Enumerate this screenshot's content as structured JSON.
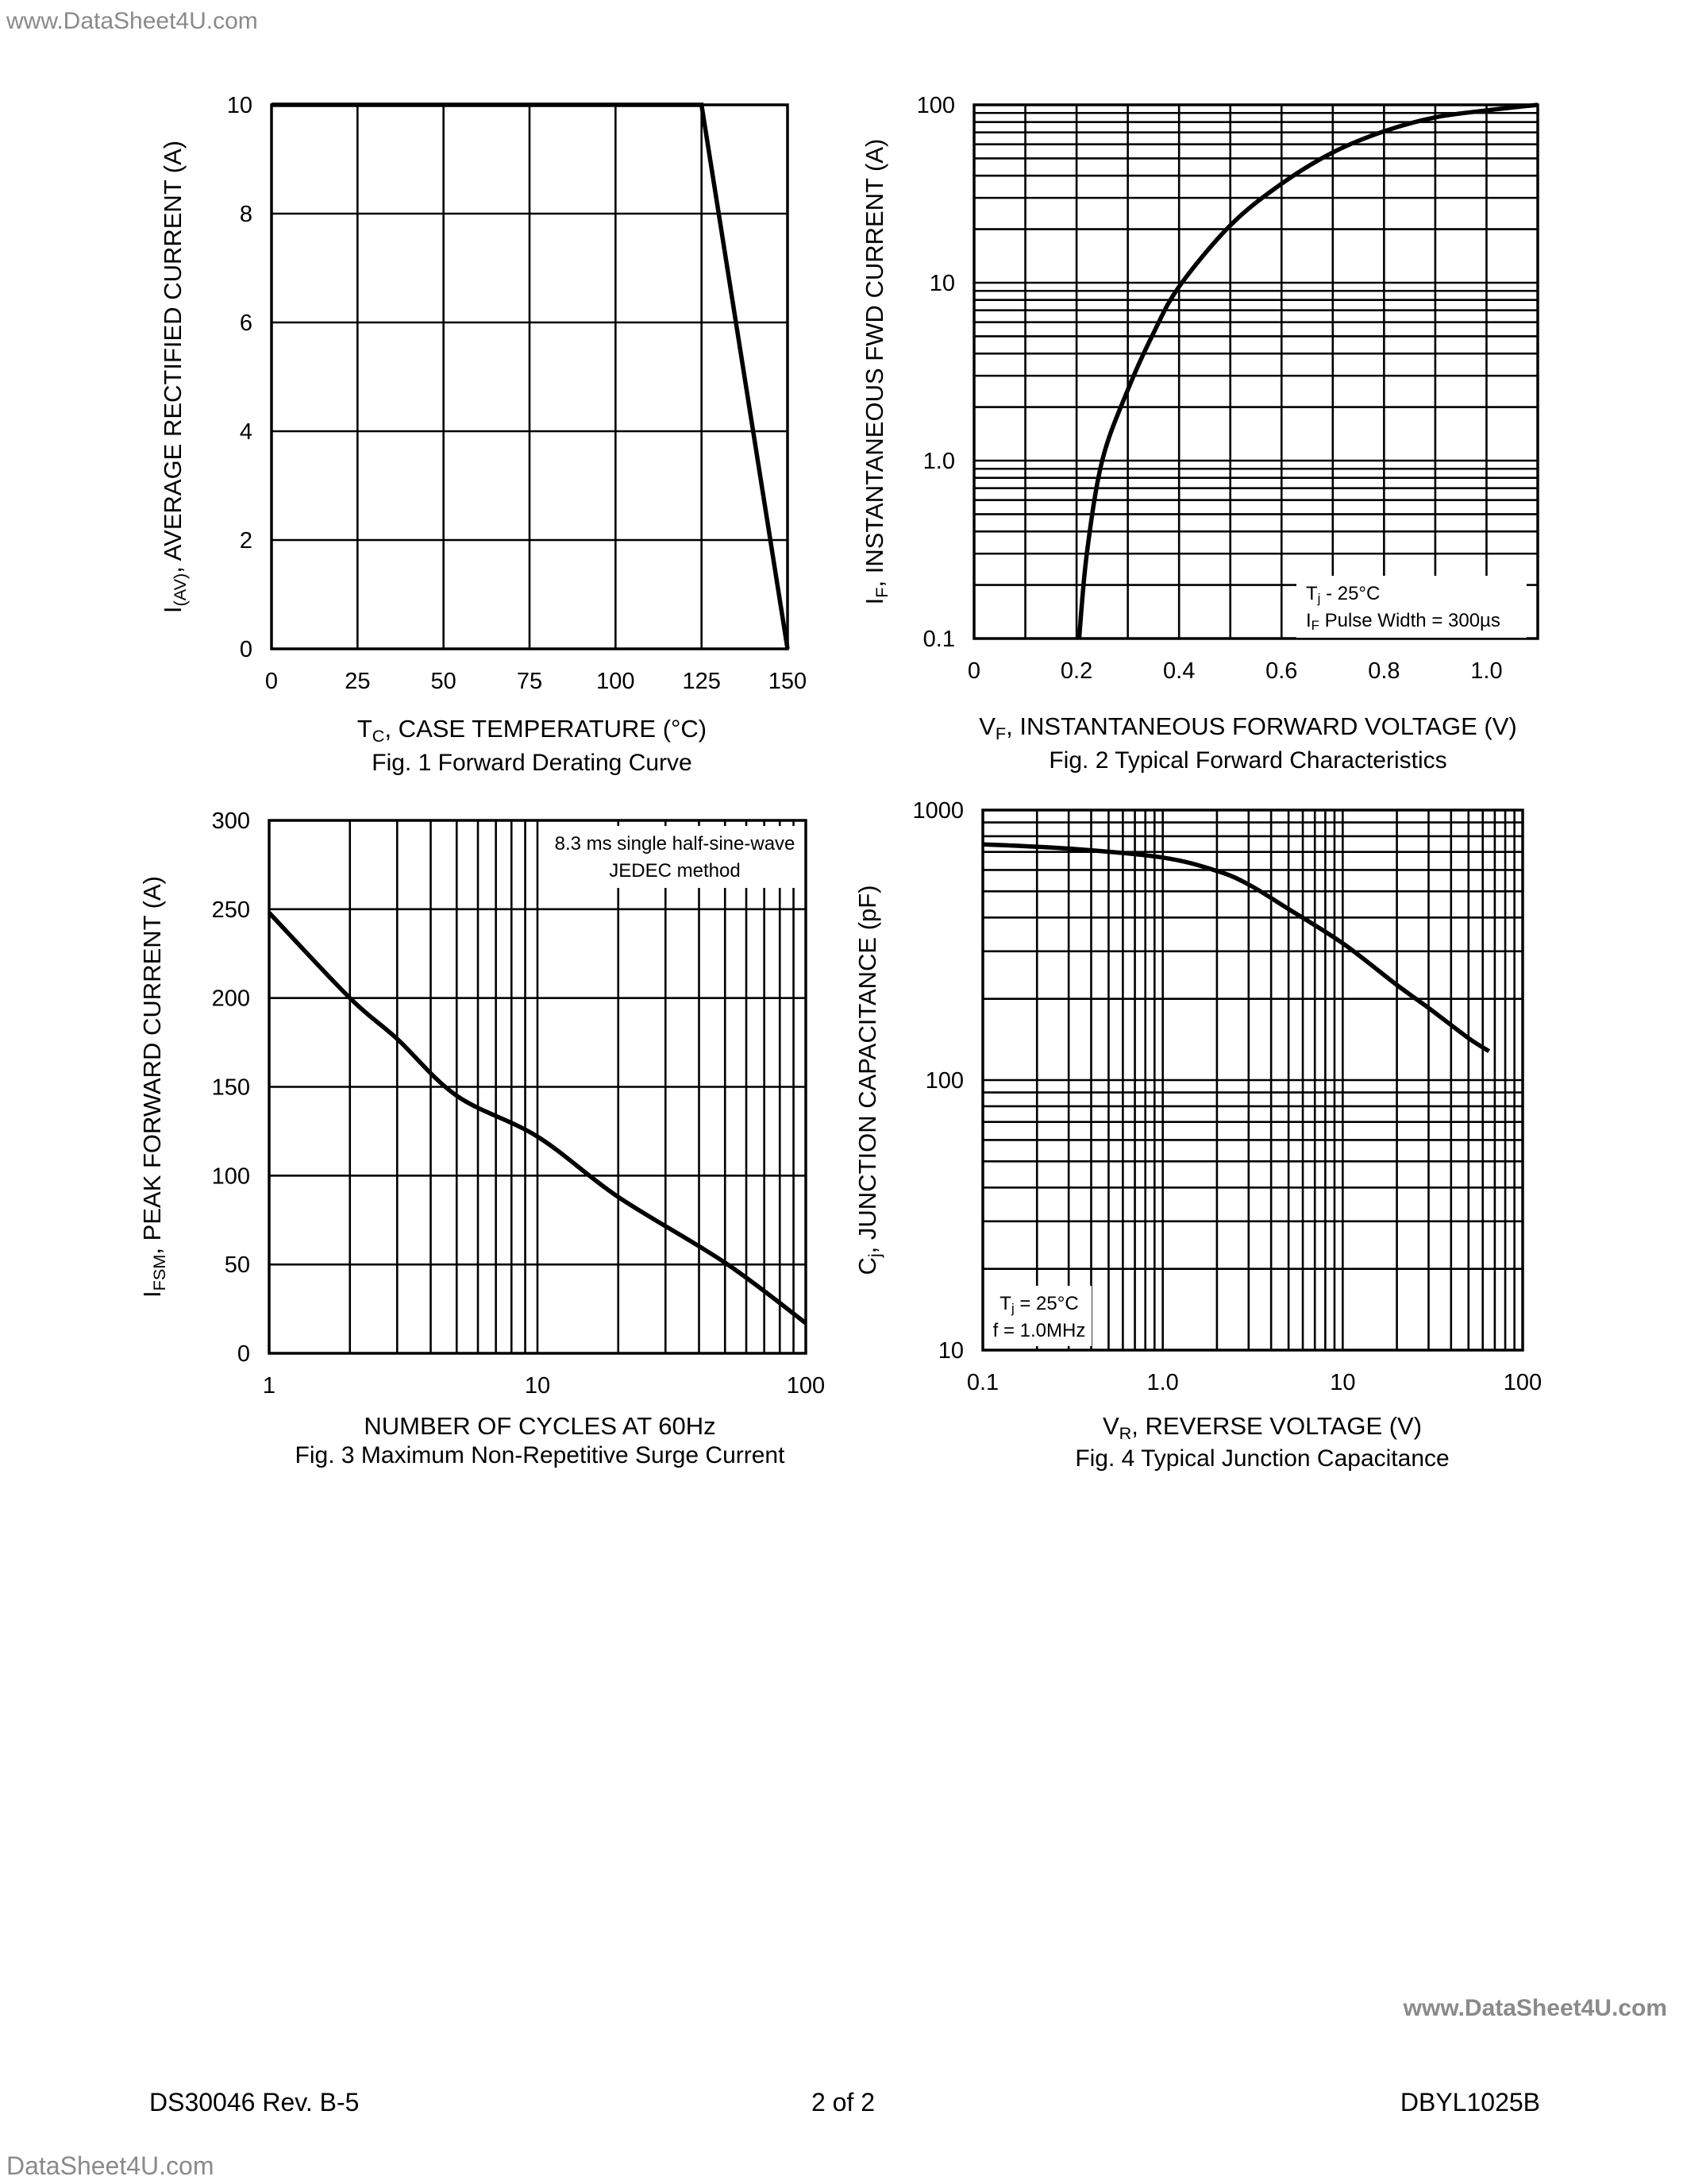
{
  "header": {
    "watermark_top": "www.DataSheet4U.com"
  },
  "footer": {
    "doc_number": "DS30046 Rev. B-5",
    "page": "2 of 2",
    "part_number": "DBYL1025B",
    "watermark_right": "www.DataSheet4U.com",
    "watermark_bottom": "DataSheet4U.com"
  },
  "colors": {
    "ink": "#000000",
    "watermark": "#8a8a8a"
  },
  "chart_data": [
    {
      "type": "line",
      "caption": "Fig. 1  Forward Derating Curve",
      "xlabel": [
        [
          "T",
          0
        ],
        [
          "C",
          1
        ],
        [
          ", CASE TEMPERATURE (°C)",
          0
        ]
      ],
      "ylabel": [
        [
          "I",
          0
        ],
        [
          "(AV)",
          1
        ],
        [
          ", AVERAGE RECTIFIED CURRENT (A)",
          0
        ]
      ],
      "xscale": "linear",
      "yscale": "linear",
      "xlim": [
        0,
        150
      ],
      "ylim": [
        0,
        10
      ],
      "xticks": [
        "0",
        "25",
        "50",
        "75",
        "100",
        "125",
        "150"
      ],
      "yticks": [
        "0",
        "2",
        "4",
        "6",
        "8",
        "10"
      ],
      "grid": true,
      "series": [
        {
          "x": [
            0,
            125,
            150
          ],
          "y": [
            10,
            10,
            0
          ]
        }
      ]
    },
    {
      "type": "line",
      "caption": "Fig. 2  Typical Forward Characteristics",
      "xlabel": [
        [
          "V",
          0
        ],
        [
          "F",
          1
        ],
        [
          ", INSTANTANEOUS FORWARD VOLTAGE (V)",
          0
        ]
      ],
      "ylabel": [
        [
          "I",
          0
        ],
        [
          "F",
          1
        ],
        [
          ", INSTANTANEOUS FWD CURRENT (A)",
          0
        ]
      ],
      "xscale": "linear",
      "yscale": "log",
      "xlim": [
        0,
        1.1
      ],
      "ylim": [
        0.1,
        100
      ],
      "xticks": [
        "0",
        "0.2",
        "0.4",
        "0.6",
        "0.8",
        "1.0"
      ],
      "yticks": [
        "0.1",
        "1.0",
        "10",
        "100"
      ],
      "grid": true,
      "annotation": [
        [
          [
            "T",
            0
          ],
          [
            "j",
            1
          ],
          [
            " - 25°C",
            0
          ]
        ],
        [
          [
            "I",
            0
          ],
          [
            "F",
            1
          ],
          [
            " Pulse Width = 300µs",
            0
          ]
        ]
      ],
      "series": [
        {
          "x": [
            0.205,
            0.22,
            0.25,
            0.3,
            0.35,
            0.4,
            0.5,
            0.6,
            0.7,
            0.8,
            0.9,
            1.0,
            1.1
          ],
          "y": [
            0.1,
            0.3,
            1.0,
            2.5,
            5.2,
            9.5,
            21,
            36,
            54,
            71,
            85,
            93,
            100
          ]
        }
      ]
    },
    {
      "type": "line",
      "caption": "Fig. 3  Maximum Non-Repetitive Surge Current",
      "xlabel": [
        [
          "NUMBER OF CYCLES AT 60Hz",
          0
        ]
      ],
      "ylabel": [
        [
          "I",
          0
        ],
        [
          "FSM",
          1
        ],
        [
          ", PEAK FORWARD CURRENT (A)",
          0
        ]
      ],
      "xscale": "log",
      "yscale": "linear",
      "xlim": [
        1,
        100
      ],
      "ylim": [
        0,
        300
      ],
      "xticks": [
        "1",
        "10",
        "100"
      ],
      "yticks": [
        "0",
        "50",
        "100",
        "150",
        "200",
        "250",
        "300"
      ],
      "grid": true,
      "annotation": [
        [
          [
            "8.3 ms single half-sine-wave",
            0
          ]
        ],
        [
          [
            "JEDEC method",
            0
          ]
        ]
      ],
      "series": [
        {
          "x": [
            1,
            2,
            3,
            5,
            10,
            20,
            50,
            100
          ],
          "y": [
            248,
            200,
            177,
            145,
            122,
            88,
            51,
            17
          ]
        }
      ]
    },
    {
      "type": "line",
      "caption": "Fig. 4  Typical Junction Capacitance",
      "xlabel": [
        [
          "V",
          0
        ],
        [
          "R",
          1
        ],
        [
          ", REVERSE VOLTAGE (V)",
          0
        ]
      ],
      "ylabel": [
        [
          "C",
          0
        ],
        [
          "j",
          1
        ],
        [
          ", JUNCTION CAPACITANCE (pF)",
          0
        ]
      ],
      "xscale": "log",
      "yscale": "log",
      "xlim": [
        0.1,
        100
      ],
      "ylim": [
        10,
        1000
      ],
      "xticks": [
        "0.1",
        "1.0",
        "10",
        "100"
      ],
      "yticks": [
        "10",
        "100",
        "1000"
      ],
      "grid": true,
      "annotation": [
        [
          [
            "T",
            0
          ],
          [
            "j",
            1
          ],
          [
            " = 25°C",
            0
          ]
        ],
        [
          [
            "f = 1.0MHz",
            0
          ]
        ]
      ],
      "series": [
        {
          "x": [
            0.1,
            0.3,
            1.0,
            2,
            3,
            5,
            10,
            20,
            30,
            50,
            65
          ],
          "y": [
            747,
            720,
            667,
            595,
            530,
            430,
            321,
            225,
            185,
            143,
            128
          ]
        }
      ]
    }
  ]
}
